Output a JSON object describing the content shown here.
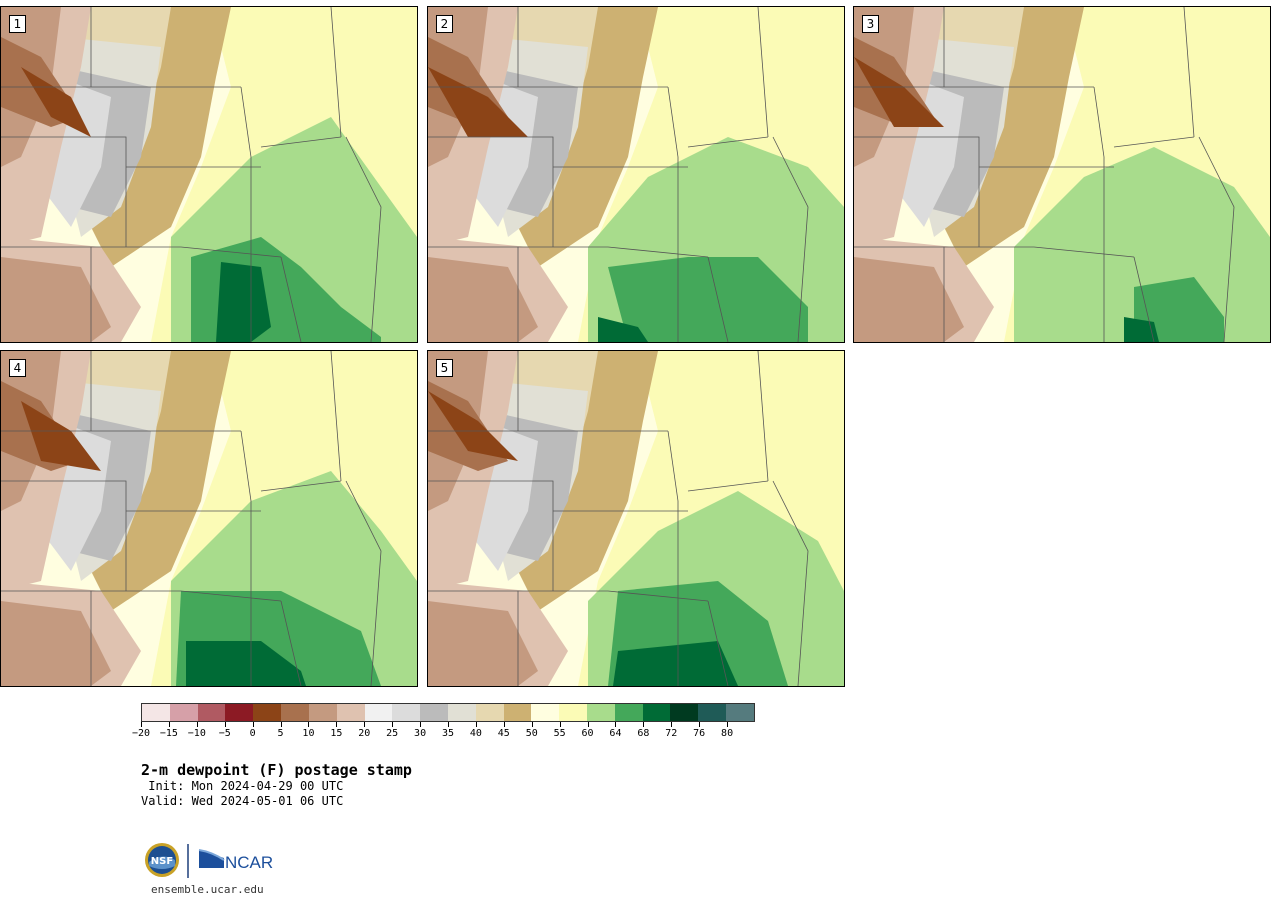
{
  "panels": [
    {
      "label": "1"
    },
    {
      "label": "2"
    },
    {
      "label": "3"
    },
    {
      "label": "4"
    },
    {
      "label": "5"
    }
  ],
  "legend": {
    "tick_labels": [
      "−20",
      "−15",
      "−10",
      "−5",
      "0",
      "5",
      "10",
      "15",
      "20",
      "25",
      "30",
      "35",
      "40",
      "45",
      "50",
      "55",
      "60",
      "64",
      "68",
      "72",
      "76",
      "80"
    ],
    "colors": [
      "#f4e6e6",
      "#d6a0a8",
      "#b05a62",
      "#8c1a24",
      "#8c4417",
      "#a8714e",
      "#c49a80",
      "#dfc2b0",
      "#f1f1f1",
      "#dcdcdc",
      "#bbbbbb",
      "#e1e0d5",
      "#e6d8b0",
      "#cdb172",
      "#fffee0",
      "#fbfbb6",
      "#a8dc8c",
      "#44a85a",
      "#006b36",
      "#003a20",
      "#1f5b57",
      "#557b7e"
    ]
  },
  "title": "2-m dewpoint (F) postage stamp",
  "init_text": " Init: Mon 2024-04-29 00 UTC",
  "valid_text": "Valid: Wed 2024-05-01 06 UTC",
  "logos": {
    "nsf": "NSF",
    "ncar": "NCAR"
  },
  "site": "ensemble.ucar.edu"
}
